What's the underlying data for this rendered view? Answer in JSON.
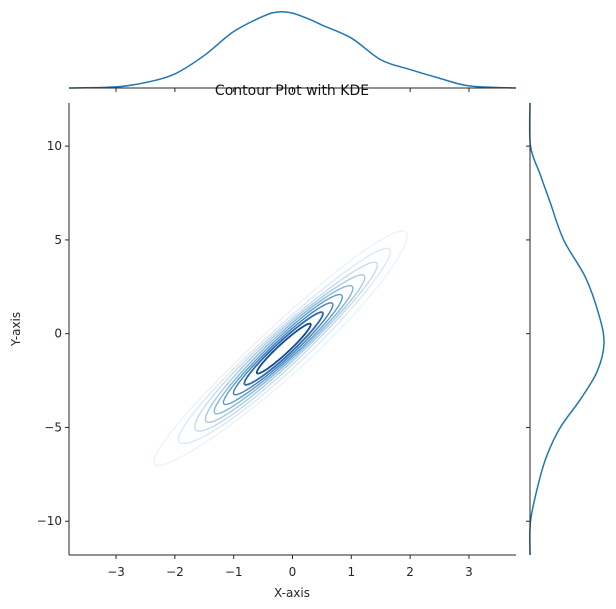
{
  "chart_data": {
    "type": "contour",
    "title": "Contour Plot with KDE",
    "xlabel": "X-axis",
    "ylabel": "Y-axis",
    "xlim": [
      -3.8,
      3.8
    ],
    "ylim": [
      -11.8,
      12.3
    ],
    "x_ticks": [
      -3,
      -2,
      -1,
      0,
      1,
      2,
      3
    ],
    "x_tick_labels": [
      "−3",
      "−2",
      "−1",
      "0",
      "1",
      "2",
      "3"
    ],
    "y_ticks": [
      -10,
      -5,
      0,
      5,
      10
    ],
    "y_tick_labels": [
      "−10",
      "−5",
      "0",
      "5",
      "10"
    ],
    "color": "#1f77b4",
    "kde_contours": {
      "center": [
        -0.15,
        -0.8
      ],
      "x_sd": 1.0,
      "y_sd": 2.9,
      "correlation": 0.96,
      "levels": [
        0.1,
        0.2,
        0.3,
        0.4,
        0.5,
        0.6,
        0.7,
        0.8,
        0.9
      ],
      "level_colors": [
        "#eaf3fb",
        "#dbe9f6",
        "#c6dbef",
        "#a6cbe3",
        "#84b6d9",
        "#5f9ccd",
        "#3e80bf",
        "#2b6aad",
        "#0d4c93"
      ]
    },
    "marginal_x": {
      "x": [
        -3.8,
        -3.0,
        -2.5,
        -2.0,
        -1.5,
        -1.0,
        -0.5,
        -0.25,
        0.0,
        0.3,
        0.5,
        1.0,
        1.5,
        2.0,
        2.5,
        3.0,
        3.8
      ],
      "density": [
        0.0,
        0.01,
        0.05,
        0.13,
        0.3,
        0.52,
        0.66,
        0.7,
        0.69,
        0.63,
        0.58,
        0.46,
        0.26,
        0.17,
        0.09,
        0.02,
        0.0
      ]
    },
    "marginal_y": {
      "y": [
        12.3,
        10.0,
        8.5,
        7.0,
        5.0,
        3.0,
        1.0,
        -0.5,
        -2.0,
        -3.5,
        -5.0,
        -6.5,
        -8.0,
        -10.0,
        -11.8
      ],
      "density": [
        0.0,
        0.003,
        0.06,
        0.12,
        0.2,
        0.33,
        0.41,
        0.44,
        0.4,
        0.3,
        0.18,
        0.1,
        0.05,
        0.003,
        0.0
      ]
    }
  }
}
